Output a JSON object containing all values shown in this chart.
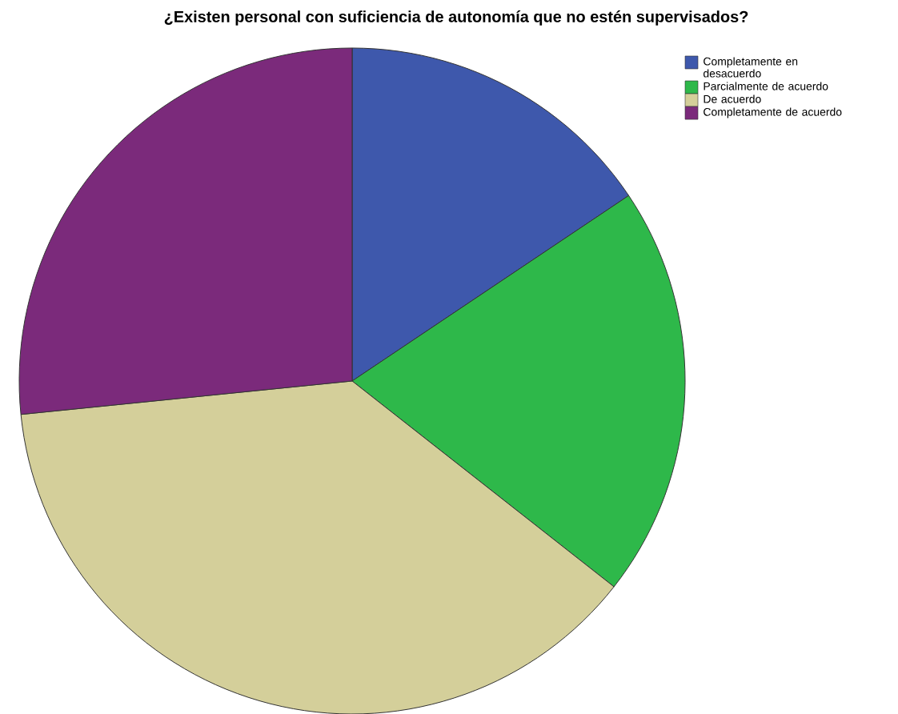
{
  "chart_data": {
    "type": "pie",
    "title": "¿Existen personal con suficiencia de autonomía que no estén supervisados?",
    "categories": [
      "Completamente en desacuerdo",
      "Parcialmente de acuerdo",
      "De acuerdo",
      "Completamente de acuerdo"
    ],
    "values": [
      15.6,
      20.0,
      37.8,
      26.6
    ],
    "colors": [
      "#3e58ac",
      "#2eb84a",
      "#d4cf9a",
      "#7b2a7b"
    ],
    "legend": "top right"
  }
}
